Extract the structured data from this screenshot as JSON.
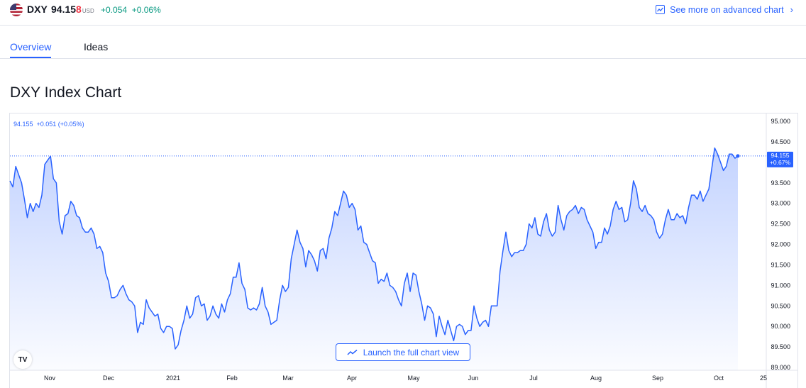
{
  "header": {
    "symbol": "DXY",
    "price_main": "94.15",
    "price_last_digit": "8",
    "currency": "USD",
    "change": "+0.054  +0.06%",
    "advanced_link": "See more on advanced chart"
  },
  "tabs": [
    {
      "label": "Overview",
      "active": true
    },
    {
      "label": "Ideas",
      "active": false
    }
  ],
  "page_title": "DXY Index Chart",
  "chart": {
    "legend": "94.155  +0.051 (+0.05%)",
    "price_tag_value": "94.155",
    "price_tag_change": "+0.67%",
    "launch_label": "Launch the full chart view",
    "logo_text": "TV",
    "line_color": "#2962ff"
  },
  "chart_data": {
    "type": "area",
    "title": "",
    "xlabel": "",
    "ylabel": "",
    "ylim": [
      89.0,
      95.0
    ],
    "y_ticks": [
      "95.000",
      "94.500",
      "94.000",
      "93.500",
      "93.000",
      "92.500",
      "92.000",
      "91.500",
      "91.000",
      "90.500",
      "90.000",
      "89.500",
      "89.000"
    ],
    "x_ticks": [
      "Nov",
      "Dec",
      "2021",
      "Feb",
      "Mar",
      "Apr",
      "May",
      "Jun",
      "Jul",
      "Aug",
      "Sep",
      "Oct",
      "25"
    ],
    "last_value": 94.155,
    "series": [
      {
        "values": [
          93.55,
          93.4,
          93.9,
          93.7,
          93.5,
          93.1,
          92.65,
          93.0,
          92.8,
          93.0,
          92.9,
          93.2,
          93.95,
          94.05,
          94.15,
          93.6,
          93.5,
          92.55,
          92.25,
          92.7,
          92.75,
          93.05,
          92.95,
          92.7,
          92.65,
          92.4,
          92.3,
          92.3,
          92.4,
          92.25,
          91.9,
          91.95,
          91.8,
          91.3,
          91.1,
          90.7,
          90.7,
          90.75,
          90.9,
          91.0,
          90.8,
          90.65,
          90.6,
          90.5,
          89.85,
          90.1,
          90.05,
          90.65,
          90.45,
          90.35,
          90.25,
          90.3,
          89.95,
          89.85,
          90.0,
          90.0,
          89.95,
          89.45,
          89.55,
          89.9,
          90.15,
          90.5,
          90.2,
          90.3,
          90.7,
          90.75,
          90.5,
          90.55,
          90.15,
          90.25,
          90.5,
          90.3,
          90.2,
          90.55,
          90.35,
          90.65,
          90.8,
          91.2,
          91.2,
          91.55,
          91.05,
          90.9,
          90.45,
          90.4,
          90.45,
          90.4,
          90.55,
          90.95,
          90.5,
          90.35,
          90.05,
          90.1,
          90.15,
          90.65,
          91.0,
          90.85,
          90.95,
          91.65,
          92.0,
          92.35,
          92.05,
          91.9,
          91.45,
          91.85,
          91.75,
          91.6,
          91.35,
          91.85,
          91.9,
          91.65,
          92.15,
          92.4,
          92.8,
          92.7,
          93.0,
          93.3,
          93.2,
          92.9,
          93.0,
          92.85,
          92.35,
          92.45,
          92.05,
          92.0,
          91.8,
          91.6,
          91.55,
          91.05,
          91.15,
          91.1,
          91.3,
          91.0,
          90.95,
          90.85,
          90.65,
          90.5,
          91.05,
          91.3,
          90.85,
          91.3,
          91.25,
          90.85,
          90.55,
          90.15,
          90.5,
          90.45,
          90.3,
          89.75,
          90.25,
          90.0,
          89.8,
          90.15,
          89.9,
          89.65,
          90.0,
          90.05,
          90.0,
          89.8,
          89.9,
          89.9,
          90.5,
          90.2,
          90.0,
          90.1,
          90.15,
          90.0,
          90.5,
          90.5,
          90.5,
          91.35,
          91.85,
          92.3,
          91.85,
          91.7,
          91.8,
          91.8,
          91.85,
          91.85,
          92.0,
          92.5,
          92.4,
          92.65,
          92.25,
          92.2,
          92.55,
          92.75,
          92.35,
          92.2,
          92.3,
          92.95,
          92.6,
          92.35,
          92.7,
          92.8,
          92.85,
          92.95,
          92.75,
          92.9,
          92.85,
          92.6,
          92.45,
          92.3,
          91.9,
          92.05,
          92.05,
          92.4,
          92.25,
          92.45,
          92.85,
          93.05,
          92.85,
          92.9,
          92.55,
          92.6,
          93.0,
          93.55,
          93.35,
          92.9,
          92.8,
          92.95,
          92.75,
          92.7,
          92.6,
          92.3,
          92.15,
          92.25,
          92.6,
          92.85,
          92.6,
          92.6,
          92.75,
          92.65,
          92.7,
          92.5,
          92.9,
          93.2,
          93.2,
          93.1,
          93.3,
          93.05,
          93.2,
          93.35,
          93.85,
          94.35,
          94.2,
          94.0,
          93.8,
          93.9,
          94.2,
          94.2,
          94.1,
          94.155
        ]
      }
    ]
  }
}
